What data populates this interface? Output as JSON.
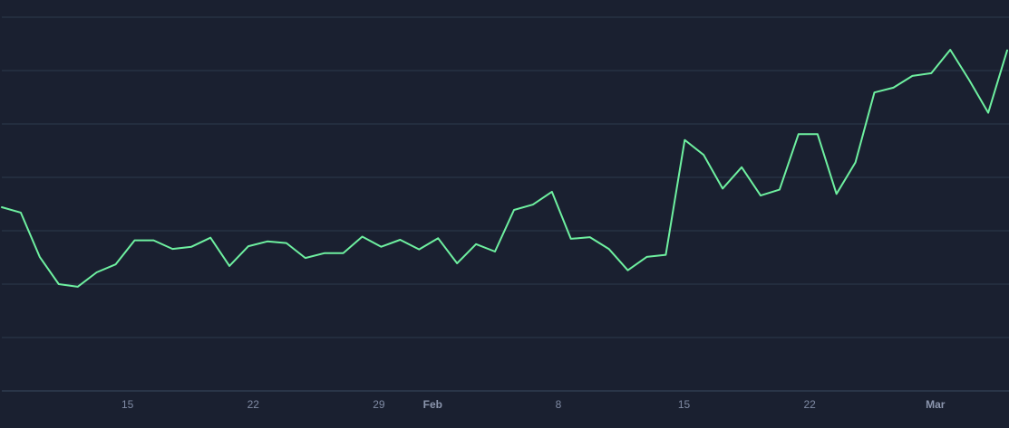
{
  "chart_data": {
    "type": "line",
    "title": "",
    "xlabel": "",
    "ylabel": "",
    "grid": true,
    "y_axis_labels_visible": false,
    "x_start": "Jan 8",
    "x_end": "Mar 5",
    "ylim": [
      0,
      7.3
    ],
    "x_ticks": [
      {
        "label": "15",
        "date": "Jan 15",
        "bold": false
      },
      {
        "label": "22",
        "date": "Jan 22",
        "bold": false
      },
      {
        "label": "29",
        "date": "Jan 29",
        "bold": false
      },
      {
        "label": "Feb",
        "date": "Feb 1",
        "bold": true
      },
      {
        "label": "8",
        "date": "Feb 8",
        "bold": false
      },
      {
        "label": "15",
        "date": "Feb 15",
        "bold": false
      },
      {
        "label": "22",
        "date": "Feb 22",
        "bold": false
      },
      {
        "label": "Mar",
        "date": "Mar 1",
        "bold": true
      }
    ],
    "series": [
      {
        "color": "#6ef0a0",
        "values": [
          3.44,
          3.34,
          2.51,
          2.0,
          1.95,
          2.22,
          2.37,
          2.82,
          2.82,
          2.66,
          2.7,
          2.87,
          2.34,
          2.71,
          2.8,
          2.77,
          2.49,
          2.58,
          2.58,
          2.89,
          2.7,
          2.83,
          2.65,
          2.86,
          2.39,
          2.75,
          2.61,
          3.39,
          3.49,
          3.73,
          2.85,
          2.88,
          2.66,
          2.26,
          2.51,
          2.55,
          4.7,
          4.42,
          3.79,
          4.19,
          3.66,
          3.77,
          4.81,
          4.81,
          3.69,
          4.28,
          5.59,
          5.68,
          5.9,
          5.95,
          6.39,
          5.82,
          5.21,
          6.38
        ]
      }
    ],
    "colors": {
      "background": "#1a2030",
      "grid": "#2c3a4c",
      "axis": "#3a4a5f",
      "tick_text": "#7f8aa3",
      "line": "#6ef0a0"
    }
  }
}
